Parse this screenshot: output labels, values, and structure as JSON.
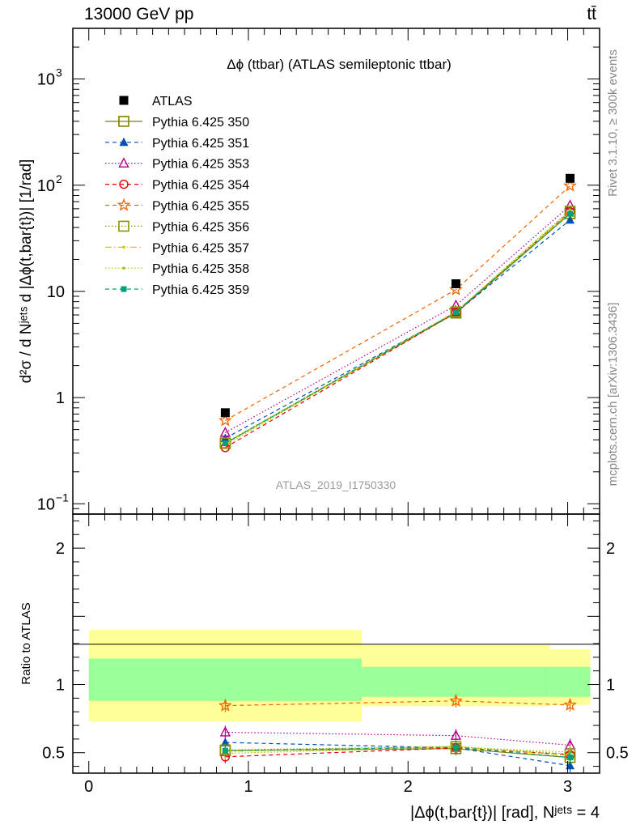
{
  "header": {
    "left": "13000 GeV pp",
    "right": "tt̄"
  },
  "side_labels": {
    "rivet": "Rivet 3.1.10, ≥ 300k events",
    "mcplots": "mcplots.cern.ch [arXiv:1306.3436]"
  },
  "chart_data": {
    "type": "line",
    "title": "Δϕ (ttbar) (ATLAS semileptonic ttbar)",
    "watermark": "ATLAS_2019_I1750330",
    "ylabel": "d²σ / d Nʲᵉᵗˢ d |Δϕ(t,bar{t})| [1/rad]",
    "xlabel": "|Δϕ(t,bar{t})| [rad], Nʲᵉᵗˢ = 4",
    "ratio_ylabel": "Ratio to ATLAS",
    "xlim": [
      -0.1,
      3.2
    ],
    "ylim": [
      0.08,
      3000
    ],
    "yscale": "log",
    "ratio_ylim": [
      0.35,
      2.25
    ],
    "main_y_ticks": [
      {
        "v": 0.1,
        "base": "10",
        "exp": "−1"
      },
      {
        "v": 1,
        "base": "1",
        "exp": ""
      },
      {
        "v": 10,
        "base": "10",
        "exp": ""
      },
      {
        "v": 100,
        "base": "10",
        "exp": "2"
      },
      {
        "v": 1000,
        "base": "10",
        "exp": "3"
      }
    ],
    "x_ticks": [
      "0",
      "1",
      "2",
      "3"
    ],
    "ratio_y_ticks": [
      "0.5",
      "1",
      "2"
    ],
    "bins": [
      [
        0,
        1.71
      ],
      [
        1.71,
        2.89
      ],
      [
        2.89,
        3.1416
      ]
    ],
    "x": [
      0.855,
      2.3,
      3.015
    ],
    "data": {
      "name": "ATLAS",
      "values": [
        0.72,
        11.8,
        116
      ],
      "band_stat": [
        [
          0.88,
          1.19
        ],
        [
          0.91,
          1.13
        ],
        [
          0.91,
          1.13
        ]
      ],
      "band_total": [
        [
          0.73,
          1.4
        ],
        [
          0.84,
          1.29
        ],
        [
          0.85,
          1.26
        ]
      ]
    },
    "series": [
      {
        "name": "Pythia 6.425 350",
        "color": "#808000",
        "marker": "open-square",
        "dash": "",
        "ratio": [
          0.515,
          0.53,
          0.465
        ]
      },
      {
        "name": "Pythia 6.425 351",
        "color": "#0050b4",
        "marker": "filled-triangle",
        "dash": "5,4",
        "ratio": [
          0.575,
          0.535,
          0.405
        ]
      },
      {
        "name": "Pythia 6.425 353",
        "color": "#b4008c",
        "marker": "open-triangle",
        "dash": "1.5,2.5",
        "ratio": [
          0.65,
          0.625,
          0.555
        ]
      },
      {
        "name": "Pythia 6.425 354",
        "color": "#e60000",
        "marker": "open-circle",
        "dash": "5,4",
        "ratio": [
          0.47,
          0.535,
          0.485
        ]
      },
      {
        "name": "Pythia 6.425 355",
        "color": "#f06400",
        "marker": "open-star",
        "dash": "5,4",
        "ratio": [
          0.845,
          0.88,
          0.85
        ]
      },
      {
        "name": "Pythia 6.425 356",
        "color": "#8c9600",
        "marker": "open-square",
        "dash": "1.5,2.5",
        "ratio": [
          0.52,
          0.545,
          0.49
        ]
      },
      {
        "name": "Pythia 6.425 357",
        "color": "#c8c800",
        "marker": "small-dot",
        "dash": "8,3,1.5,3",
        "ratio": [
          0.51,
          0.545,
          0.48
        ]
      },
      {
        "name": "Pythia 6.425 358",
        "color": "#a0c800",
        "marker": "small-dot",
        "dash": "1.5,2.5",
        "ratio": [
          0.495,
          0.54,
          0.505
        ]
      },
      {
        "name": "Pythia 6.425 359",
        "color": "#00a078",
        "marker": "filled-square",
        "dash": "5,4",
        "ratio": [
          0.515,
          0.54,
          0.465
        ]
      }
    ]
  }
}
